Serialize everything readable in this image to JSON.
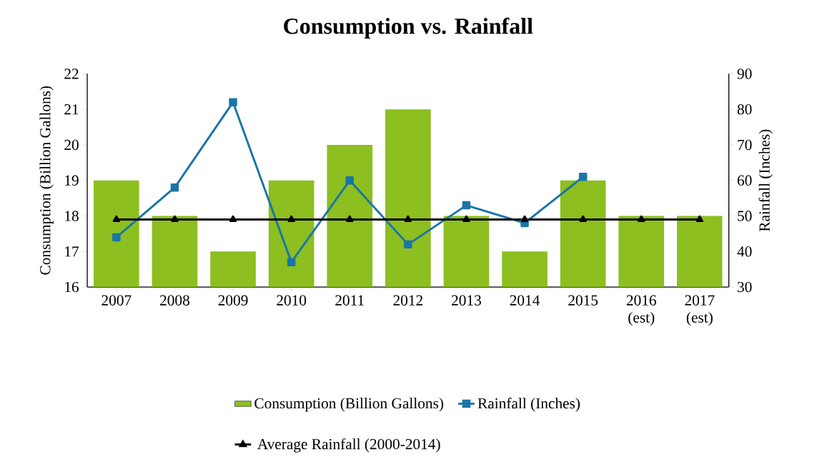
{
  "chart_data": {
    "type": "bar",
    "title": "Consumption vs. Rainfall",
    "categories": [
      "2007",
      "2008",
      "2009",
      "2010",
      "2011",
      "2012",
      "2013",
      "2014",
      "2015",
      "2016 (est)",
      "2017 (est)"
    ],
    "ylabel": "Consumption (Billion Gallons)",
    "y2label": "Rainfall (Inches)",
    "ylim": [
      16,
      22
    ],
    "yticks": [
      16,
      17,
      18,
      19,
      20,
      21,
      22
    ],
    "y2lim": [
      30,
      90
    ],
    "y2ticks": [
      30,
      40,
      50,
      60,
      70,
      80,
      90
    ],
    "legend": "bottom",
    "series": [
      {
        "name": "Consumption (Billion Gallons)",
        "color": "#8cbf1f",
        "values": [
          19,
          18,
          17,
          19,
          20,
          21,
          18,
          17,
          19,
          18,
          18
        ]
      },
      {
        "name": "Rainfall (Inches)",
        "type": "line",
        "axis": "y2",
        "marker": "square",
        "color": "#1a75a8",
        "values": [
          44,
          58,
          82,
          37,
          60,
          42,
          53,
          48,
          61,
          null,
          null
        ]
      },
      {
        "name": "Average Rainfall (2000-2014)",
        "type": "line",
        "axis": "y2",
        "marker": "triangle",
        "color": "#000000",
        "values": [
          49,
          49,
          49,
          49,
          49,
          49,
          49,
          49,
          49,
          49,
          49
        ]
      }
    ]
  }
}
